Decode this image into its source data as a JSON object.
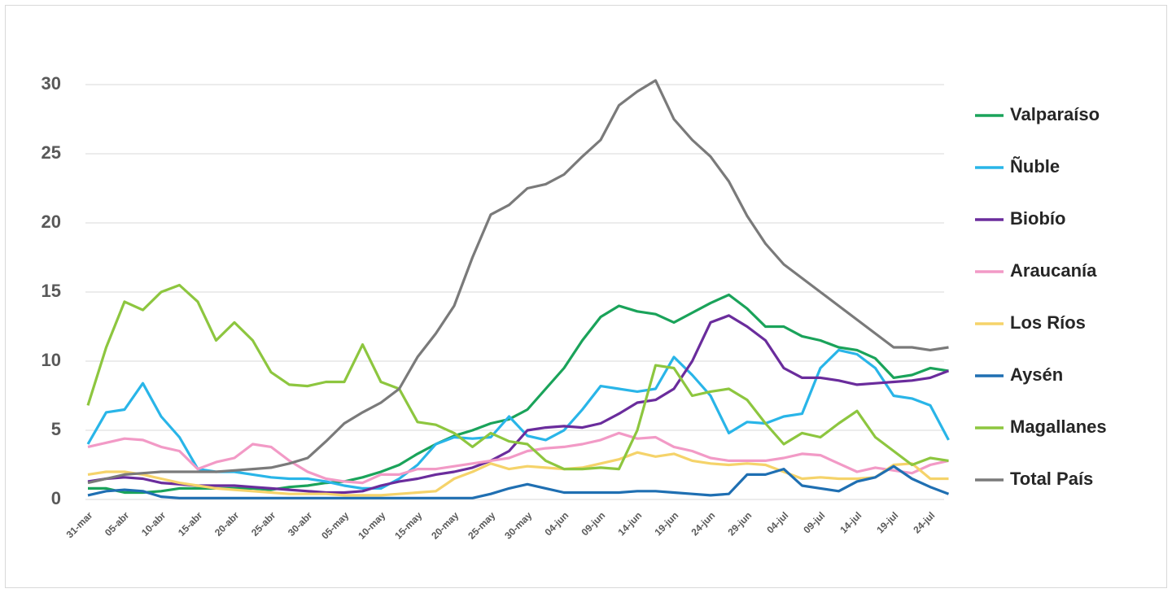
{
  "chart_data": {
    "type": "line",
    "categories": [
      "31-mar",
      null,
      "05-abr",
      null,
      "10-abr",
      null,
      "15-abr",
      null,
      "20-abr",
      null,
      "25-abr",
      null,
      "30-abr",
      null,
      "05-may",
      null,
      "10-may",
      null,
      "15-may",
      null,
      "20-may",
      null,
      "25-may",
      null,
      "30-may",
      null,
      "04-jun",
      null,
      "09-jun",
      null,
      "14-jun",
      null,
      "19-jun",
      null,
      "24-jun",
      null,
      "29-jun",
      null,
      "04-jul",
      null,
      "09-jul",
      null,
      "14-jul",
      null,
      "19-jul",
      null,
      "24-jul",
      null
    ],
    "ylim": [
      0,
      30
    ],
    "yticks": [
      0,
      5,
      10,
      15,
      20,
      25,
      30
    ],
    "grid": true,
    "series": [
      {
        "name": "Valparaíso",
        "color": "#1aa35a",
        "values": [
          0.8,
          0.8,
          0.5,
          0.5,
          0.6,
          0.8,
          0.8,
          0.8,
          0.8,
          0.8,
          0.7,
          0.9,
          1.0,
          1.2,
          1.3,
          1.6,
          2.0,
          2.5,
          3.3,
          4.0,
          4.6,
          5.0,
          5.5,
          5.8,
          6.5,
          8.0,
          9.5,
          11.5,
          13.2,
          14.0,
          13.6,
          13.4,
          12.8,
          13.5,
          14.2,
          14.8,
          13.8,
          12.5,
          12.5,
          11.8,
          11.5,
          11.0,
          10.8,
          10.2,
          8.8,
          9.0,
          9.5,
          9.3
        ]
      },
      {
        "name": "Ñuble",
        "color": "#29b5e8",
        "values": [
          4.0,
          6.3,
          6.5,
          8.4,
          6.0,
          4.5,
          2.2,
          2.0,
          2.0,
          1.8,
          1.6,
          1.5,
          1.5,
          1.3,
          1.0,
          0.8,
          0.8,
          1.5,
          2.5,
          4.0,
          4.5,
          4.4,
          4.5,
          6.0,
          4.6,
          4.3,
          5.0,
          6.5,
          8.2,
          8.0,
          7.8,
          8.0,
          10.3,
          9.0,
          7.5,
          4.8,
          5.6,
          5.5,
          6.0,
          6.2,
          9.5,
          10.8,
          10.5,
          9.5,
          7.5,
          7.3,
          6.8,
          4.3
        ]
      },
      {
        "name": "Biobío",
        "color": "#6a2c9c",
        "values": [
          1.3,
          1.5,
          1.6,
          1.5,
          1.2,
          1.1,
          1.0,
          1.0,
          1.0,
          0.9,
          0.8,
          0.7,
          0.6,
          0.5,
          0.5,
          0.6,
          1.0,
          1.3,
          1.5,
          1.8,
          2.0,
          2.3,
          2.8,
          3.5,
          5.0,
          5.2,
          5.3,
          5.2,
          5.5,
          6.2,
          7.0,
          7.2,
          8.0,
          10.0,
          12.8,
          13.3,
          12.5,
          11.5,
          9.5,
          8.8,
          8.8,
          8.6,
          8.3,
          8.4,
          8.5,
          8.6,
          8.8,
          9.3
        ]
      },
      {
        "name": "Araucanía",
        "color": "#f29ac6",
        "values": [
          3.8,
          4.1,
          4.4,
          4.3,
          3.8,
          3.5,
          2.2,
          2.7,
          3.0,
          4.0,
          3.8,
          2.8,
          2.0,
          1.5,
          1.3,
          1.2,
          1.8,
          1.8,
          2.2,
          2.2,
          2.4,
          2.6,
          2.8,
          3.0,
          3.5,
          3.7,
          3.8,
          4.0,
          4.3,
          4.8,
          4.4,
          4.5,
          3.8,
          3.5,
          3.0,
          2.8,
          2.8,
          2.8,
          3.0,
          3.3,
          3.2,
          2.6,
          2.0,
          2.3,
          2.1,
          1.9,
          2.5,
          2.8
        ]
      },
      {
        "name": "Los Ríos",
        "color": "#f5d36a",
        "values": [
          1.8,
          2.0,
          2.0,
          1.8,
          1.5,
          1.2,
          1.0,
          0.8,
          0.7,
          0.6,
          0.5,
          0.4,
          0.4,
          0.4,
          0.3,
          0.3,
          0.3,
          0.4,
          0.5,
          0.6,
          1.5,
          2.0,
          2.6,
          2.2,
          2.4,
          2.3,
          2.2,
          2.3,
          2.6,
          2.9,
          3.4,
          3.1,
          3.3,
          2.8,
          2.6,
          2.5,
          2.6,
          2.5,
          2.0,
          1.5,
          1.6,
          1.5,
          1.5,
          1.6,
          2.5,
          2.6,
          1.5,
          1.5
        ]
      },
      {
        "name": "Aysén",
        "color": "#1f6fb2",
        "values": [
          0.3,
          0.6,
          0.7,
          0.6,
          0.2,
          0.1,
          0.1,
          0.1,
          0.1,
          0.1,
          0.1,
          0.1,
          0.1,
          0.1,
          0.1,
          0.1,
          0.1,
          0.1,
          0.1,
          0.1,
          0.1,
          0.1,
          0.4,
          0.8,
          1.1,
          0.8,
          0.5,
          0.5,
          0.5,
          0.5,
          0.6,
          0.6,
          0.5,
          0.4,
          0.3,
          0.4,
          1.8,
          1.8,
          2.2,
          1.0,
          0.8,
          0.6,
          1.3,
          1.6,
          2.4,
          1.5,
          0.9,
          0.4
        ]
      },
      {
        "name": "Magallanes",
        "color": "#8dc63f",
        "values": [
          6.8,
          11.0,
          14.3,
          13.7,
          15.0,
          15.5,
          14.3,
          11.5,
          12.8,
          11.5,
          9.2,
          8.3,
          8.2,
          8.5,
          8.5,
          11.2,
          8.5,
          8.0,
          5.6,
          5.4,
          4.8,
          3.8,
          4.8,
          4.2,
          4.0,
          2.8,
          2.2,
          2.2,
          2.3,
          2.2,
          5.0,
          9.7,
          9.5,
          7.5,
          7.8,
          8.0,
          7.2,
          5.5,
          4.0,
          4.8,
          4.5,
          5.5,
          6.4,
          4.5,
          3.5,
          2.5,
          3.0,
          2.8
        ]
      },
      {
        "name": "Total País",
        "color": "#7a7a7a",
        "values": [
          1.2,
          1.5,
          1.8,
          1.9,
          2.0,
          2.0,
          2.0,
          2.0,
          2.1,
          2.2,
          2.3,
          2.6,
          3.0,
          4.2,
          5.5,
          6.3,
          7.0,
          8.0,
          10.3,
          12.0,
          14.0,
          17.5,
          20.6,
          21.3,
          22.5,
          22.8,
          23.5,
          24.8,
          26.0,
          28.5,
          29.5,
          30.3,
          27.5,
          26.0,
          24.8,
          23.0,
          20.5,
          18.5,
          17.0,
          16.0,
          15.0,
          14.0,
          13.0,
          12.0,
          11.0,
          11.0,
          10.8,
          11.0
        ]
      }
    ]
  }
}
